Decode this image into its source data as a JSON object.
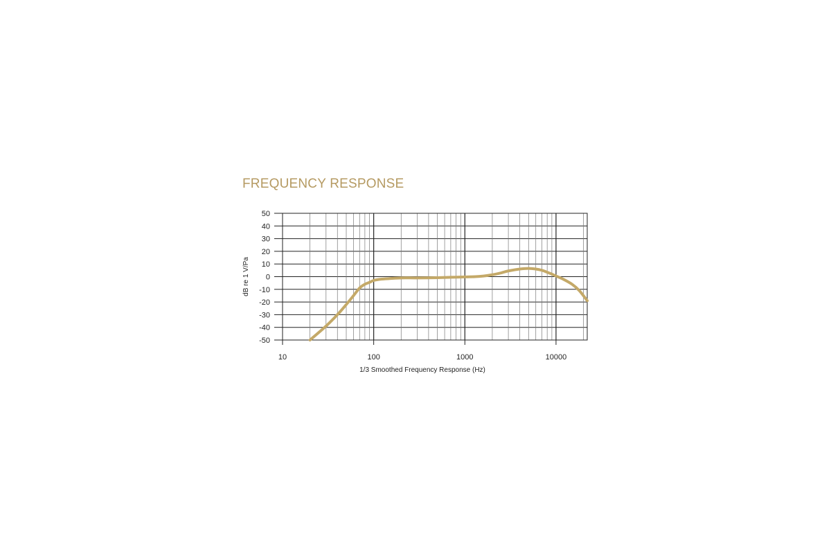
{
  "title": "FREQUENCY RESPONSE",
  "colors": {
    "title": "#b59a62",
    "curve": "#c4a968",
    "grid": "#222222",
    "minor_grid": "#777777"
  },
  "chart_data": {
    "type": "line",
    "title": "FREQUENCY RESPONSE",
    "xlabel": "1/3 Smoothed Frequency Response (Hz)",
    "ylabel": "dB re 1 V/Pa",
    "x_scale": "log",
    "xlim": [
      10,
      22000
    ],
    "ylim": [
      -50,
      50
    ],
    "x_ticks": [
      10,
      100,
      1000,
      10000
    ],
    "x_tick_labels": [
      "10",
      "100",
      "1000",
      "10000"
    ],
    "y_ticks": [
      50,
      40,
      30,
      20,
      10,
      0,
      -10,
      -20,
      -30,
      -40,
      -50
    ],
    "y_tick_labels": [
      "50",
      "40",
      "30",
      "20",
      "10",
      "0",
      "-10",
      "-20",
      "-30",
      "-40",
      "-50"
    ],
    "grid": true,
    "series": [
      {
        "x": [
          20,
          30,
          40,
          50,
          60,
          70,
          80,
          90,
          100,
          120,
          150,
          200,
          300,
          500,
          700,
          1000,
          1300,
          1600,
          2000,
          2500,
          3000,
          4000,
          5000,
          6000,
          7000,
          8000,
          9000,
          10000,
          12000,
          15000,
          18000,
          22000
        ],
        "y": [
          -50,
          -39,
          -30,
          -22,
          -15,
          -9,
          -6,
          -4.5,
          -3,
          -2,
          -1.5,
          -1,
          -1,
          -0.8,
          -0.5,
          -0.2,
          0,
          0.5,
          1.5,
          3,
          4.5,
          6,
          6.5,
          6,
          5,
          3.5,
          2,
          0.5,
          -2,
          -6,
          -11,
          -19
        ]
      }
    ]
  }
}
